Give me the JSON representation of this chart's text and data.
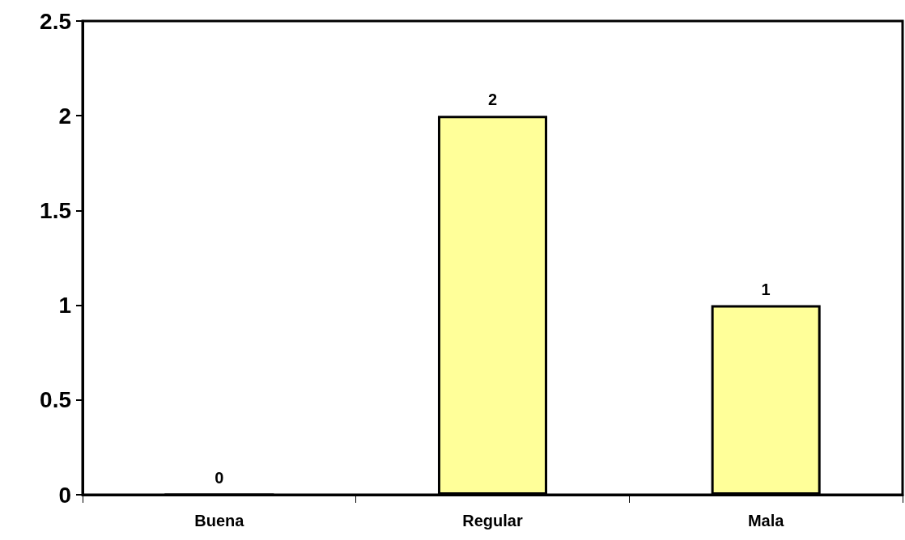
{
  "chart_data": {
    "type": "bar",
    "categories": [
      "Buena",
      "Regular",
      "Mala"
    ],
    "values": [
      0,
      2,
      1
    ],
    "color": "#ffff99",
    "ylim": [
      0,
      2.5
    ],
    "yticks": [
      0,
      0.5,
      1,
      1.5,
      2,
      2.5
    ],
    "grid": false,
    "data_labels": true
  }
}
